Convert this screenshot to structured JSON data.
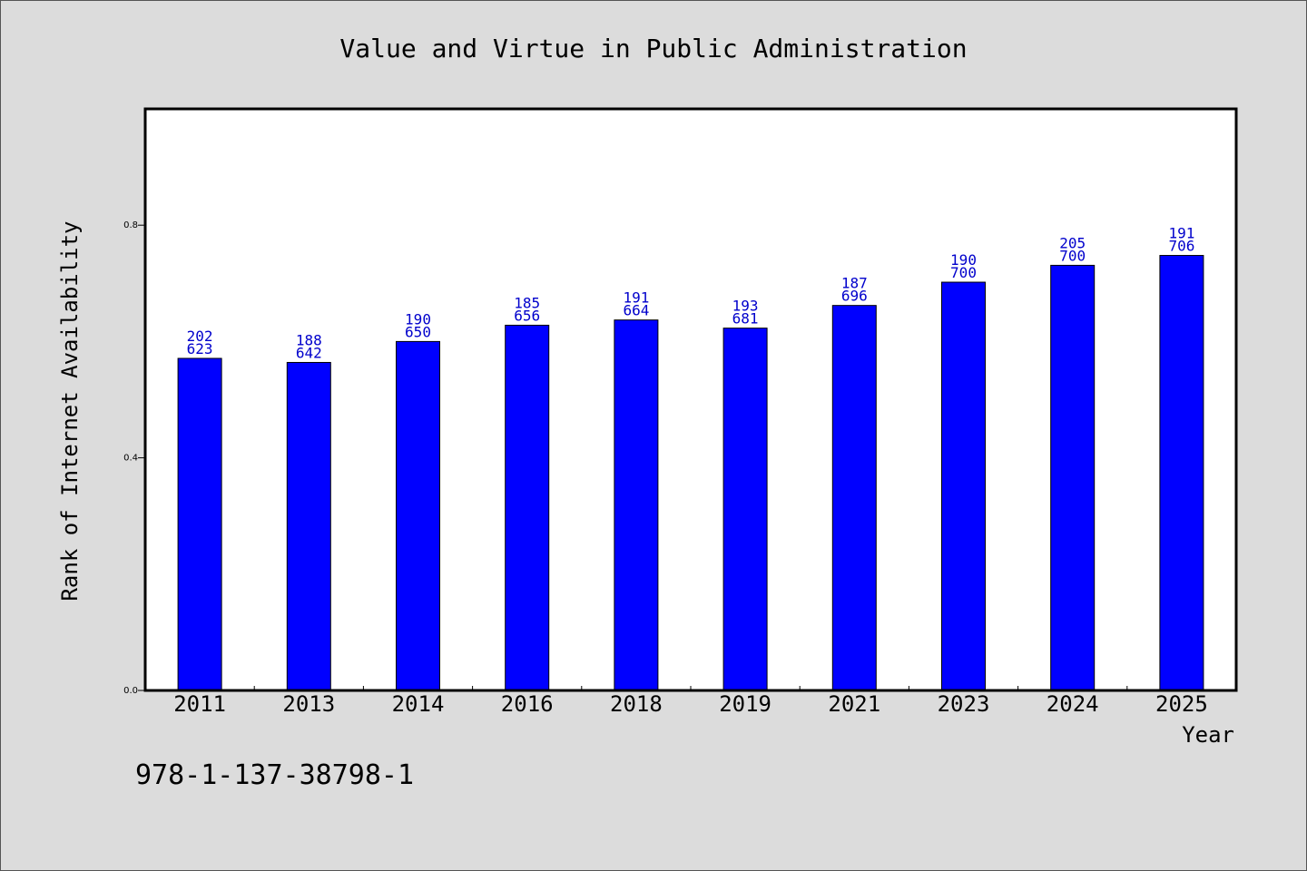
{
  "chart_data": {
    "type": "bar",
    "title": "Value and Virtue in Public Administration",
    "xlabel": "Year",
    "ylabel": "Rank of Internet Availability",
    "categories": [
      "2011",
      "2013",
      "2014",
      "2016",
      "2018",
      "2019",
      "2021",
      "2023",
      "2024",
      "2025"
    ],
    "values": [
      0.571,
      0.564,
      0.6,
      0.628,
      0.637,
      0.623,
      0.662,
      0.702,
      0.731,
      0.748
    ],
    "data_labels": [
      [
        "202",
        "623"
      ],
      [
        "188",
        "642"
      ],
      [
        "190",
        "650"
      ],
      [
        "185",
        "656"
      ],
      [
        "191",
        "664"
      ],
      [
        "193",
        "681"
      ],
      [
        "187",
        "696"
      ],
      [
        "190",
        "700"
      ],
      [
        "205",
        "700"
      ],
      [
        "191",
        "706"
      ]
    ],
    "yticks": [
      "0.0",
      "0.4",
      "0.8"
    ],
    "ytick_values": [
      0.0,
      0.4,
      0.8
    ],
    "ylim": [
      0,
      1.0
    ],
    "grid": false,
    "legend": "none",
    "bar_color": "#0000ff",
    "label_color": "#0000cc",
    "plot_background": "#ffffff",
    "page_background": "#dcdcdc"
  },
  "footer": {
    "isbn": "978-1-137-38798-1"
  }
}
